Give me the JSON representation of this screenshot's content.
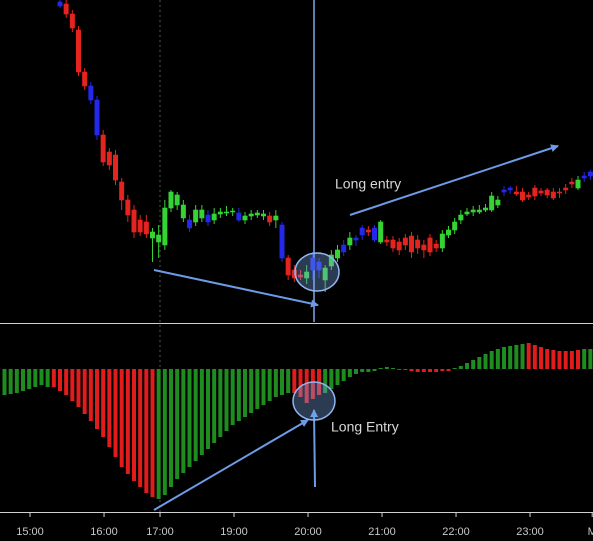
{
  "chart_data": [
    {
      "type": "candlestick",
      "annotations": [
        "Long entry"
      ],
      "xlim": [
        -9.73,
        86.43
      ],
      "ylim": [
        8,
        330
      ],
      "palette": {
        "r": "#e3241f",
        "g": "#35d435",
        "b": "#2428ea"
      },
      "x": [
        0,
        1,
        2,
        3,
        4,
        5,
        6,
        7,
        8,
        9,
        10,
        11,
        12,
        13,
        14,
        15,
        16,
        17,
        18,
        19,
        20,
        21,
        22,
        23,
        24,
        25,
        26,
        27,
        28,
        29,
        30,
        31,
        32,
        33,
        34,
        35,
        36,
        37,
        38,
        39,
        40,
        41,
        42,
        43,
        44,
        45,
        46,
        47,
        48,
        49,
        50,
        51,
        52,
        53,
        54,
        55,
        56,
        57,
        58,
        59,
        60,
        61,
        62,
        63,
        64,
        65,
        66,
        67,
        68,
        69,
        70,
        71,
        72,
        73,
        74,
        75,
        76,
        77,
        78,
        79,
        80,
        81,
        82,
        83,
        84,
        85,
        86
      ],
      "ohlc": [
        [
          328,
          330,
          322,
          324
        ],
        [
          326,
          330,
          312,
          316
        ],
        [
          316,
          320,
          298,
          302
        ],
        [
          300,
          304,
          254,
          258
        ],
        [
          258,
          262,
          240,
          244
        ],
        [
          244,
          248,
          226,
          230
        ],
        [
          230,
          234,
          190,
          195
        ],
        [
          195,
          200,
          164,
          168
        ],
        [
          178,
          182,
          160,
          165
        ],
        [
          175,
          180,
          145,
          150
        ],
        [
          148,
          152,
          120,
          130
        ],
        [
          130,
          135,
          108,
          115
        ],
        [
          120,
          125,
          92,
          98
        ],
        [
          110,
          115,
          94,
          98
        ],
        [
          108,
          115,
          92,
          96
        ],
        [
          92,
          102,
          68,
          98
        ],
        [
          88,
          105,
          72,
          95
        ],
        [
          85,
          130,
          80,
          122
        ],
        [
          122,
          140,
          118,
          138
        ],
        [
          125,
          138,
          120,
          135
        ],
        [
          112,
          130,
          108,
          125
        ],
        [
          110,
          115,
          98,
          102
        ],
        [
          108,
          125,
          104,
          120
        ],
        [
          112,
          125,
          108,
          120
        ],
        [
          115,
          120,
          104,
          108
        ],
        [
          110,
          122,
          106,
          116
        ],
        [
          116,
          122,
          112,
          118
        ],
        [
          117,
          124,
          114,
          118
        ],
        [
          118,
          122,
          114,
          119
        ],
        [
          117,
          122,
          108,
          110
        ],
        [
          110,
          118,
          106,
          114
        ],
        [
          114,
          120,
          110,
          116
        ],
        [
          115,
          120,
          112,
          117
        ],
        [
          114,
          120,
          110,
          116
        ],
        [
          114,
          118,
          104,
          108
        ],
        [
          110,
          120,
          102,
          114
        ],
        [
          105,
          108,
          68,
          72
        ],
        [
          72,
          75,
          50,
          55
        ],
        [
          60,
          65,
          48,
          52
        ],
        [
          55,
          60,
          50,
          53
        ],
        [
          52,
          65,
          46,
          58
        ],
        [
          60,
          78,
          50,
          72
        ],
        [
          60,
          72,
          52,
          68
        ],
        [
          50,
          65,
          38,
          62
        ],
        [
          64,
          80,
          60,
          75
        ],
        [
          72,
          85,
          68,
          80
        ],
        [
          78,
          90,
          74,
          85
        ],
        [
          85,
          98,
          80,
          92
        ],
        [
          90,
          95,
          84,
          92
        ],
        [
          95,
          105,
          90,
          102
        ],
        [
          100,
          104,
          94,
          98
        ],
        [
          102,
          105,
          88,
          90
        ],
        [
          88,
          110,
          86,
          108
        ],
        [
          90,
          94,
          84,
          88
        ],
        [
          90,
          94,
          78,
          82
        ],
        [
          88,
          92,
          75,
          80
        ],
        [
          92,
          96,
          80,
          85
        ],
        [
          94,
          98,
          72,
          78
        ],
        [
          90,
          95,
          76,
          82
        ],
        [
          85,
          90,
          72,
          80
        ],
        [
          92,
          96,
          74,
          78
        ],
        [
          86,
          90,
          78,
          82
        ],
        [
          82,
          100,
          78,
          96
        ],
        [
          95,
          104,
          92,
          100
        ],
        [
          100,
          112,
          96,
          108
        ],
        [
          110,
          120,
          106,
          115
        ],
        [
          116,
          122,
          114,
          118
        ],
        [
          118,
          124,
          114,
          120
        ],
        [
          118,
          125,
          116,
          120
        ],
        [
          120,
          126,
          118,
          122
        ],
        [
          120,
          138,
          118,
          134
        ],
        [
          125,
          134,
          122,
          130
        ],
        [
          138,
          144,
          134,
          140
        ],
        [
          140,
          144,
          136,
          142
        ],
        [
          138,
          144,
          134,
          136
        ],
        [
          138,
          142,
          128,
          130
        ],
        [
          135,
          138,
          130,
          133
        ],
        [
          142,
          145,
          130,
          134
        ],
        [
          139,
          142,
          134,
          137
        ],
        [
          140,
          142,
          132,
          135
        ],
        [
          138,
          142,
          130,
          132
        ],
        [
          138,
          142,
          132,
          137
        ],
        [
          142,
          146,
          136,
          140
        ],
        [
          148,
          152,
          142,
          146
        ],
        [
          142,
          154,
          140,
          150
        ],
        [
          152,
          158,
          148,
          154
        ],
        [
          154,
          160,
          150,
          158
        ]
      ],
      "colors": [
        "b",
        "r",
        "r",
        "r",
        "r",
        "b",
        "b",
        "r",
        "r",
        "r",
        "r",
        "r",
        "r",
        "r",
        "r",
        "g",
        "g",
        "g",
        "g",
        "g",
        "g",
        "b",
        "g",
        "g",
        "b",
        "g",
        "g",
        "g",
        "g",
        "b",
        "g",
        "g",
        "g",
        "g",
        "r",
        "g",
        "b",
        "r",
        "r",
        "r",
        "g",
        "b",
        "b",
        "g",
        "g",
        "g",
        "b",
        "g",
        "b",
        "b",
        "r",
        "b",
        "g",
        "r",
        "r",
        "r",
        "r",
        "r",
        "r",
        "r",
        "r",
        "r",
        "g",
        "g",
        "g",
        "g",
        "g",
        "g",
        "g",
        "g",
        "g",
        "g",
        "b",
        "b",
        "r",
        "r",
        "r",
        "r",
        "r",
        "r",
        "r",
        "r",
        "r",
        "r",
        "g",
        "b",
        "b"
      ]
    },
    {
      "type": "bar",
      "annotations": [
        "Long Entry"
      ],
      "xlim": [
        -9.73,
        86.43
      ],
      "ylim": [
        -143,
        45
      ],
      "xticks": [
        {
          "value": -4.86,
          "label": "15:00"
        },
        {
          "value": 7.14,
          "label": "16:00"
        },
        {
          "value": 16.22,
          "label": "17:00"
        },
        {
          "value": 28.22,
          "label": "19:00"
        },
        {
          "value": 40.22,
          "label": "20:00"
        },
        {
          "value": 52.22,
          "label": "21:00"
        },
        {
          "value": 64.22,
          "label": "22:00"
        },
        {
          "value": 76.22,
          "label": "23:00"
        },
        {
          "value": 86.3,
          "label": "M"
        }
      ],
      "palette": {
        "r": "#e01c1c",
        "g": "#1f8c1f"
      },
      "x": [
        -9,
        -8,
        -7,
        -6,
        -5,
        -4,
        -3,
        -2,
        -1,
        0,
        1,
        2,
        3,
        4,
        5,
        6,
        7,
        8,
        9,
        10,
        11,
        12,
        13,
        14,
        15,
        16,
        17,
        18,
        19,
        20,
        21,
        22,
        23,
        24,
        25,
        26,
        27,
        28,
        29,
        30,
        31,
        32,
        33,
        34,
        35,
        36,
        37,
        38,
        39,
        40,
        41,
        42,
        43,
        44,
        45,
        46,
        47,
        48,
        49,
        50,
        51,
        52,
        53,
        54,
        55,
        56,
        57,
        58,
        59,
        60,
        61,
        62,
        63,
        64,
        65,
        66,
        67,
        68,
        69,
        70,
        71,
        72,
        73,
        74,
        75,
        76,
        77,
        78,
        79,
        80,
        81,
        82,
        83,
        84,
        85,
        86
      ],
      "values": [
        -26,
        -25,
        -24,
        -22,
        -20,
        -18,
        -16,
        -18,
        -18,
        -22,
        -26,
        -32,
        -38,
        -45,
        -52,
        -60,
        -68,
        -78,
        -88,
        -98,
        -105,
        -112,
        -118,
        -124,
        -128,
        -130,
        -126,
        -118,
        -110,
        -104,
        -98,
        -92,
        -86,
        -80,
        -74,
        -68,
        -62,
        -56,
        -52,
        -48,
        -44,
        -40,
        -36,
        -32,
        -28,
        -26,
        -24,
        -24,
        -28,
        -34,
        -30,
        -26,
        -24,
        -20,
        -16,
        -12,
        -8,
        -5,
        -3,
        -3,
        -2,
        1,
        2,
        1,
        -1,
        -1,
        -2,
        -3,
        -3,
        -3,
        -3,
        -2,
        -2,
        1,
        3,
        6,
        9,
        12,
        15,
        18,
        20,
        22,
        23,
        24,
        25,
        26,
        24,
        22,
        20,
        19,
        18,
        18,
        18,
        19,
        20,
        20
      ],
      "colors": [
        "g",
        "g",
        "g",
        "g",
        "g",
        "g",
        "g",
        "g",
        "r",
        "r",
        "r",
        "r",
        "r",
        "r",
        "r",
        "r",
        "r",
        "r",
        "r",
        "r",
        "r",
        "r",
        "r",
        "r",
        "r",
        "g",
        "g",
        "g",
        "g",
        "g",
        "g",
        "g",
        "g",
        "g",
        "g",
        "g",
        "g",
        "g",
        "g",
        "g",
        "g",
        "g",
        "g",
        "g",
        "g",
        "g",
        "g",
        "r",
        "r",
        "r",
        "r",
        "r",
        "g",
        "g",
        "g",
        "g",
        "g",
        "g",
        "g",
        "g",
        "g",
        "g",
        "g",
        "g",
        "r",
        "r",
        "r",
        "r",
        "r",
        "r",
        "r",
        "r",
        "r",
        "g",
        "g",
        "g",
        "g",
        "g",
        "g",
        "g",
        "g",
        "g",
        "g",
        "g",
        "g",
        "r",
        "r",
        "r",
        "r",
        "r",
        "r",
        "r",
        "r",
        "r",
        "g",
        "g"
      ]
    }
  ]
}
